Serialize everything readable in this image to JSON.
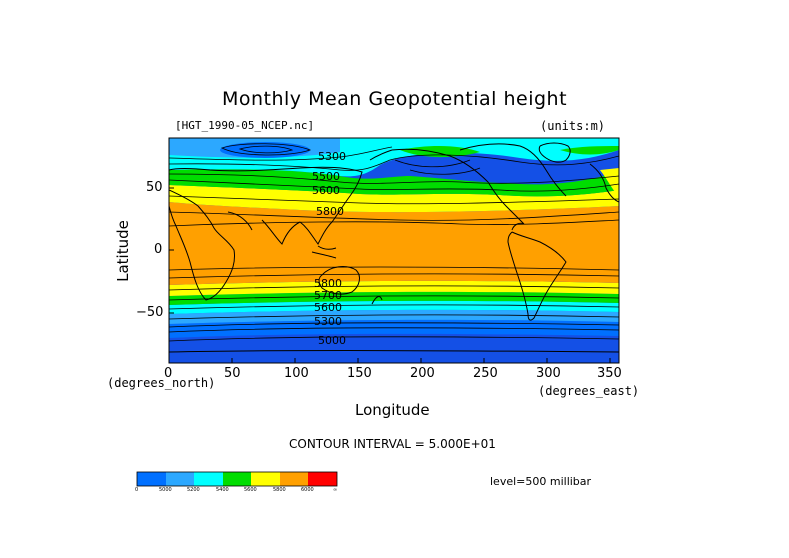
{
  "figure": {
    "title": "Monthly Mean Geopotential height",
    "file_label": "[HGT_1990-05_NCEP.nc]",
    "units_label": "(units:m)",
    "x_axis_title": "Longitude",
    "y_axis_title": "Latitude",
    "x_units": "(degrees_east)",
    "y_units": "(degrees_north)",
    "x_ticks": [
      "0",
      "50",
      "100",
      "150",
      "200",
      "250",
      "300",
      "350"
    ],
    "y_ticks": [
      "50",
      "0",
      "−50"
    ],
    "contour_interval": "CONTOUR INTERVAL = 5.000E+01",
    "level": "level=500 millibar"
  },
  "contour_labels": [
    "5300",
    "5500",
    "5600",
    "5800",
    "5800",
    "5700",
    "5600",
    "5300",
    "5000"
  ],
  "colorbar": {
    "colors": [
      "#0070ff",
      "#2ca8ff",
      "#00ffff",
      "#00dd00",
      "#ffff00",
      "#ffa000",
      "#ff0000"
    ],
    "labels": [
      "0",
      "5000",
      "5200",
      "5400",
      "5600",
      "5800",
      "6000",
      "∞"
    ]
  },
  "colors": {
    "deep_blue": "#1450e6",
    "blue": "#0070ff",
    "light_blue": "#2ca8ff",
    "cyan": "#00ffff",
    "green": "#00dd00",
    "yellow": "#ffff00",
    "orange": "#ffa000",
    "coast": "#000000"
  }
}
